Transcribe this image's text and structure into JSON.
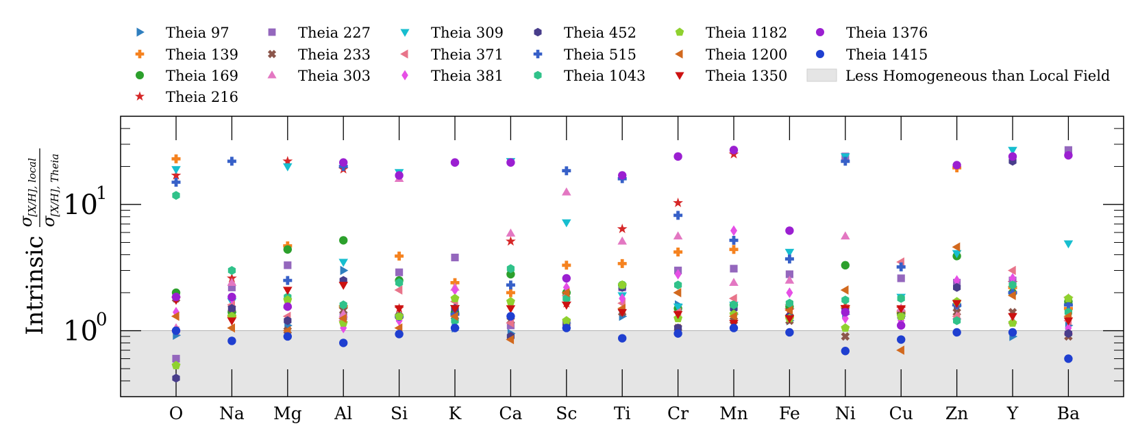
{
  "chart_data": {
    "type": "scatter",
    "title": "",
    "ylabel": "Intrinsic σ[X/H], local / σ[X/H], Theia",
    "ylabel_parts": {
      "prefix": "Intrinsic",
      "sigma": "σ",
      "numerator_sub": "[X/H], local",
      "denominator_sub": "[X/H], Theia"
    },
    "yscale": "log",
    "ylim": [
      0.3,
      50
    ],
    "yticks": [
      {
        "value": 1,
        "base": "10",
        "exp": "0"
      },
      {
        "value": 10,
        "base": "10",
        "exp": "1"
      }
    ],
    "shaded_region": {
      "label": "Less Homogeneous than Local Field",
      "from": 0.3,
      "to": 1.0,
      "color": "#e5e5e5"
    },
    "categories": [
      "O",
      "Na",
      "Mg",
      "Al",
      "Si",
      "K",
      "Ca",
      "Sc",
      "Ti",
      "Cr",
      "Mn",
      "Fe",
      "Ni",
      "Cu",
      "Zn",
      "Y",
      "Ba"
    ],
    "series": [
      {
        "name": "Theia 97",
        "marker": "tri-right",
        "color": "#2f7fbf",
        "values": [
          0.92,
          1.4,
          1.1,
          3.0,
          1.28,
          1.05,
          0.95,
          1.15,
          1.3,
          1.6,
          1.35,
          1.2,
          1.35,
          1.3,
          1.55,
          0.9,
          1.1
        ]
      },
      {
        "name": "Theia 139",
        "marker": "plus",
        "color": "#f5821f",
        "values": [
          23,
          1.3,
          4.7,
          1.55,
          3.9,
          2.4,
          2.0,
          3.3,
          3.4,
          4.2,
          4.4,
          1.3,
          1.55,
          1.4,
          19.5,
          2.2,
          1.5
        ]
      },
      {
        "name": "Theia 169",
        "marker": "circle",
        "color": "#2ca02c",
        "values": [
          2.0,
          1.4,
          4.4,
          5.2,
          2.5,
          1.4,
          2.8,
          2.0,
          2.3,
          1.5,
          1.6,
          1.55,
          3.3,
          1.35,
          3.9,
          2.0,
          1.7
        ]
      },
      {
        "name": "Theia 216",
        "marker": "star",
        "color": "#d62728",
        "values": [
          17,
          2.6,
          22,
          19,
          1.5,
          1.55,
          5.1,
          1.65,
          6.4,
          10.3,
          25,
          1.45,
          1.55,
          1.5,
          1.55,
          2.4,
          1.8
        ]
      },
      {
        "name": "Theia 227",
        "marker": "square",
        "color": "#9467bd",
        "values": [
          0.6,
          2.2,
          3.3,
          1.3,
          2.9,
          3.8,
          1.1,
          1.15,
          2.2,
          3.0,
          3.1,
          2.8,
          24,
          2.6,
          2.4,
          2.5,
          27
        ]
      },
      {
        "name": "Theia 233",
        "marker": "x",
        "color": "#8c564b",
        "values": [
          1.8,
          1.5,
          1.0,
          1.45,
          1.3,
          1.3,
          1.2,
          1.15,
          1.4,
          1.05,
          1.2,
          1.2,
          0.9,
          1.4,
          1.4,
          1.4,
          0.9
        ]
      },
      {
        "name": "Theia 303",
        "marker": "tri-up",
        "color": "#e377c2",
        "values": [
          1.05,
          2.4,
          1.6,
          1.35,
          16,
          2.2,
          5.9,
          12.5,
          5.1,
          5.6,
          2.4,
          2.5,
          5.6,
          1.5,
          1.3,
          1.2,
          1.0
        ]
      },
      {
        "name": "Theia 309",
        "marker": "tri-down",
        "color": "#17becf",
        "values": [
          19,
          1.7,
          20,
          3.5,
          18,
          1.5,
          22,
          7.2,
          1.9,
          1.55,
          1.6,
          4.2,
          24,
          1.85,
          4.1,
          27,
          4.9
        ]
      },
      {
        "name": "Theia 371",
        "marker": "tri-left",
        "color": "#e8748a",
        "values": [
          1.0,
          1.6,
          1.3,
          1.2,
          2.1,
          1.7,
          1.15,
          1.9,
          1.65,
          1.4,
          1.8,
          1.6,
          1.5,
          3.5,
          1.3,
          3.0,
          1.2
        ]
      },
      {
        "name": "Theia 381",
        "marker": "diamond",
        "color": "#e64fe6",
        "values": [
          1.4,
          1.8,
          1.7,
          1.05,
          1.2,
          2.1,
          1.3,
          2.2,
          1.8,
          2.8,
          6.2,
          2.0,
          1.25,
          1.2,
          2.5,
          2.6,
          1.05
        ]
      },
      {
        "name": "Theia 452",
        "marker": "hexagon",
        "color": "#483d8b",
        "values": [
          0.42,
          1.5,
          1.2,
          2.5,
          1.3,
          1.5,
          0.9,
          1.15,
          2.2,
          1.05,
          1.5,
          1.3,
          1.45,
          1.3,
          2.2,
          22,
          0.95
        ]
      },
      {
        "name": "Theia 515",
        "marker": "plus",
        "color": "#3760c8",
        "values": [
          15,
          22,
          2.5,
          20,
          1.3,
          1.35,
          2.3,
          18.5,
          16,
          8.2,
          5.2,
          3.7,
          22,
          3.2,
          1.6,
          2.0,
          1.6
        ]
      },
      {
        "name": "Theia 1043",
        "marker": "hexagon",
        "color": "#30c28a",
        "values": [
          11.8,
          3.0,
          1.85,
          1.6,
          2.4,
          1.2,
          3.1,
          1.8,
          2.3,
          2.3,
          1.6,
          1.65,
          1.75,
          1.8,
          1.2,
          2.3,
          1.4
        ]
      },
      {
        "name": "Theia 1182",
        "marker": "pentagon",
        "color": "#8fd12f",
        "values": [
          0.53,
          1.3,
          1.75,
          1.15,
          1.3,
          1.8,
          1.7,
          1.2,
          2.3,
          1.25,
          1.35,
          1.25,
          1.05,
          1.3,
          1.7,
          1.15,
          1.8
        ]
      },
      {
        "name": "Theia 1200",
        "marker": "tri-left",
        "color": "#d2691e",
        "values": [
          1.3,
          1.05,
          1.0,
          1.25,
          1.05,
          1.3,
          0.85,
          2.0,
          1.5,
          2.0,
          1.3,
          1.45,
          2.1,
          0.7,
          4.6,
          1.9,
          1.3
        ]
      },
      {
        "name": "Theia 1350",
        "marker": "tri-down",
        "color": "#cc1111",
        "values": [
          1.75,
          1.2,
          2.1,
          2.3,
          1.5,
          1.5,
          1.5,
          1.6,
          1.4,
          1.35,
          1.15,
          1.25,
          1.5,
          1.5,
          1.65,
          1.3,
          1.2
        ]
      },
      {
        "name": "Theia 1376",
        "marker": "circle",
        "color": "#9b1fd1",
        "values": [
          1.85,
          1.85,
          1.55,
          21.5,
          17,
          21.5,
          21.5,
          2.6,
          17,
          24,
          27,
          6.2,
          1.4,
          1.1,
          20.5,
          24,
          24.5
        ]
      },
      {
        "name": "Theia 1415",
        "marker": "circle",
        "color": "#1f3fd0",
        "values": [
          1.0,
          0.83,
          0.9,
          0.8,
          0.94,
          1.05,
          1.3,
          1.05,
          0.87,
          0.95,
          1.05,
          0.97,
          0.69,
          0.85,
          0.97,
          0.97,
          0.6
        ]
      }
    ],
    "legend": {
      "location": "top",
      "columns": 6,
      "entries": [
        "Theia 97",
        "Theia 139",
        "Theia 169",
        "Theia 216",
        "Theia 227",
        "Theia 233",
        "Theia 303",
        "Theia 309",
        "Theia 371",
        "Theia 381",
        "Theia 452",
        "Theia 515",
        "Theia 1043",
        "Theia 1182",
        "Theia 1200",
        "Theia 1350",
        "Theia 1376",
        "Theia 1415",
        "Less Homogeneous than Local Field"
      ]
    }
  }
}
